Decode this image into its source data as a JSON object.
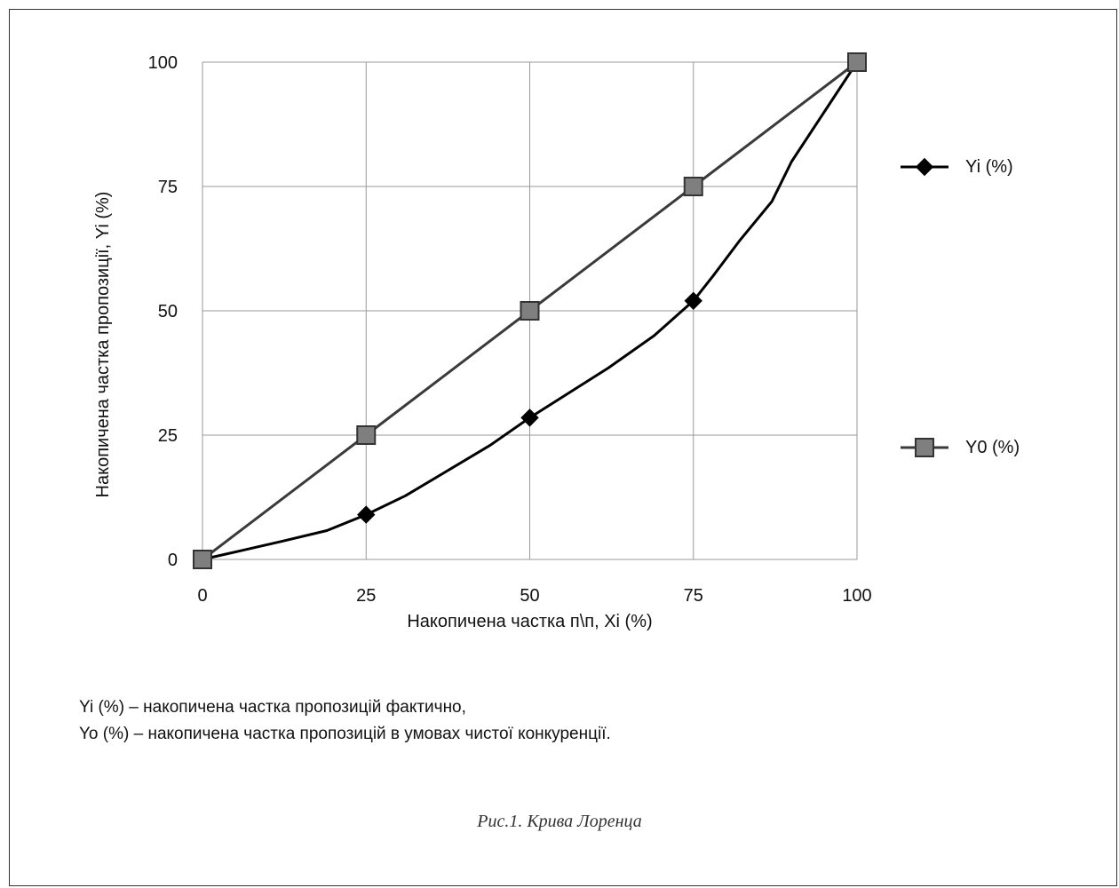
{
  "chart_data": {
    "type": "line",
    "x": [
      0,
      25,
      50,
      75,
      100
    ],
    "xlabel": "Накопичена частка п\\п, Xi (%)",
    "ylabel": "Накопичена частка пропозиції, Yi (%)",
    "xlim": [
      0,
      100
    ],
    "ylim": [
      0,
      100
    ],
    "xticks": [
      "0",
      "25",
      "50",
      "75",
      "100"
    ],
    "yticks": [
      "0",
      "25",
      "50",
      "75",
      "100"
    ],
    "grid": true,
    "legend_position": "right",
    "series": [
      {
        "name": "Yi (%)",
        "marker": "diamond",
        "color": "#000000",
        "values": [
          0,
          9,
          28.5,
          52,
          100
        ],
        "curve": [
          [
            0,
            0
          ],
          [
            6,
            1.8
          ],
          [
            12,
            3.6
          ],
          [
            19,
            5.8
          ],
          [
            25,
            9
          ],
          [
            31,
            12.8
          ],
          [
            37,
            17.5
          ],
          [
            44,
            23
          ],
          [
            50,
            28.5
          ],
          [
            56,
            33.5
          ],
          [
            62,
            38.5
          ],
          [
            69,
            45
          ],
          [
            75,
            52
          ],
          [
            78,
            57
          ],
          [
            82,
            64
          ],
          [
            87,
            72
          ],
          [
            90,
            80
          ],
          [
            95,
            90
          ],
          [
            100,
            100
          ]
        ]
      },
      {
        "name": "Y0 (%)",
        "marker": "square",
        "color": "#3a3a3a",
        "values": [
          0,
          25,
          50,
          75,
          100
        ]
      }
    ]
  },
  "notes": [
    "Yi (%) – накопичена частка пропозицій фактично,",
    "Yo (%) – накопичена частка пропозицій в умовах чистої  конкуренції."
  ],
  "caption": "Рис.1. Крива Лоренца"
}
